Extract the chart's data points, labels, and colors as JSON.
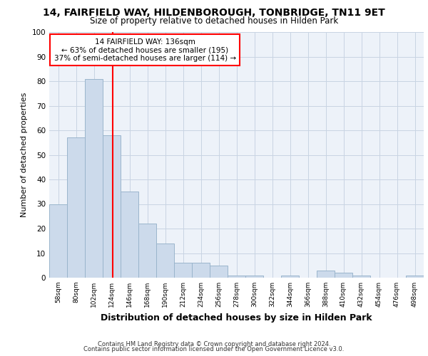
{
  "title_line1": "14, FAIRFIELD WAY, HILDENBOROUGH, TONBRIDGE, TN11 9ET",
  "title_line2": "Size of property relative to detached houses in Hilden Park",
  "xlabel": "Distribution of detached houses by size in Hilden Park",
  "ylabel": "Number of detached properties",
  "footer_line1": "Contains HM Land Registry data © Crown copyright and database right 2024.",
  "footer_line2": "Contains public sector information licensed under the Open Government Licence v3.0.",
  "annotation_title": "14 FAIRFIELD WAY: 136sqm",
  "annotation_line2": "← 63% of detached houses are smaller (195)",
  "annotation_line3": "37% of semi-detached houses are larger (114) →",
  "property_size": 136,
  "bar_color": "#ccdaeb",
  "bar_edge_color": "#9ab5cc",
  "vline_color": "red",
  "background_color": "#edf2f9",
  "grid_color": "#c8d4e3",
  "categories": [
    "58sqm",
    "80sqm",
    "102sqm",
    "124sqm",
    "146sqm",
    "168sqm",
    "190sqm",
    "212sqm",
    "234sqm",
    "256sqm",
    "278sqm",
    "300sqm",
    "322sqm",
    "344sqm",
    "366sqm",
    "388sqm",
    "410sqm",
    "432sqm",
    "454sqm",
    "476sqm",
    "498sqm"
  ],
  "bin_centers": [
    69,
    91,
    113,
    135,
    157,
    179,
    201,
    223,
    245,
    267,
    289,
    311,
    333,
    355,
    377,
    399,
    421,
    443,
    465,
    487,
    509
  ],
  "bin_edges": [
    58,
    80,
    102,
    124,
    146,
    168,
    190,
    212,
    234,
    256,
    278,
    300,
    322,
    344,
    366,
    388,
    410,
    432,
    454,
    476,
    498,
    520
  ],
  "values": [
    30,
    57,
    81,
    58,
    35,
    22,
    14,
    6,
    6,
    5,
    1,
    1,
    0,
    1,
    0,
    3,
    2,
    1,
    0,
    0,
    1
  ],
  "ylim": [
    0,
    100
  ],
  "yticks": [
    0,
    10,
    20,
    30,
    40,
    50,
    60,
    70,
    80,
    90,
    100
  ]
}
